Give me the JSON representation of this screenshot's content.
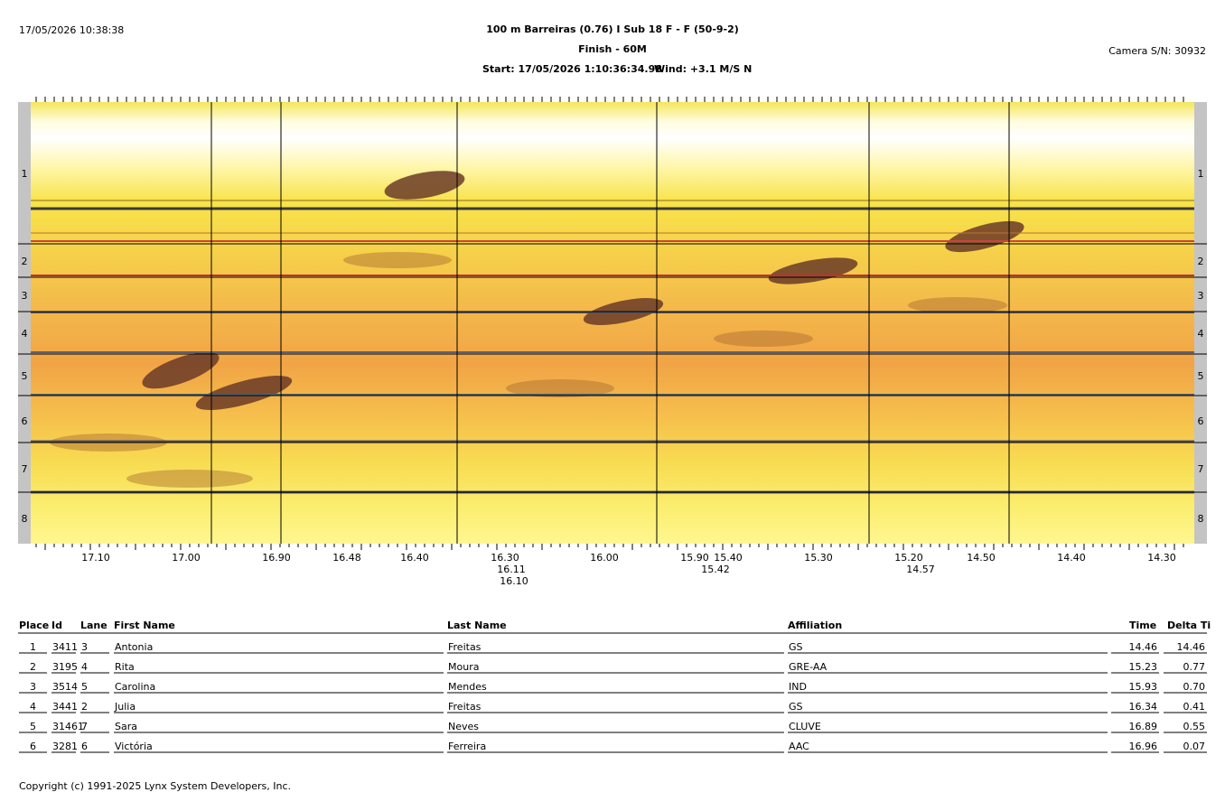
{
  "header": {
    "timestamp": "17/05/2026 10:38:38",
    "title": "100 m Barreiras (0.76) I Sub 18 F - F (50-9-2)",
    "subtitle": "Finish - 60M",
    "start": "Start: 17/05/2026 1:10:36:34.98",
    "wind": "Wind: +3.1 M/S N",
    "camera": "Camera S/N: 30932"
  },
  "image": {
    "lanes": [
      "1",
      "2",
      "3",
      "4",
      "5",
      "6",
      "7",
      "8"
    ],
    "time_labels": [
      "17.10",
      "17.00",
      "16.90",
      "16.48",
      "16.40",
      "16.30",
      "16.11",
      "16.10",
      "16.00",
      "15.90",
      "15.40",
      "15.42",
      "15.30",
      "15.20",
      "14.57",
      "14.50",
      "14.40",
      "14.30"
    ]
  },
  "table": {
    "columns": [
      "Place",
      "Id",
      "Lane",
      "First Name",
      "Last Name",
      "Affiliation",
      "Time",
      "Delta Ti"
    ],
    "rows": [
      [
        "1",
        "3411",
        "3",
        "Antonia",
        "Freitas",
        "GS",
        "14.46",
        "14.46"
      ],
      [
        "2",
        "3195",
        "4",
        "Rita",
        "Moura",
        "GRE-AA",
        "15.23",
        "0.77"
      ],
      [
        "3",
        "3514",
        "5",
        "Carolina",
        "Mendes",
        "IND",
        "15.93",
        "0.70"
      ],
      [
        "4",
        "3441",
        "2",
        "Julia",
        "Freitas",
        "GS",
        "16.34",
        "0.41"
      ],
      [
        "5",
        "31461",
        "7",
        "Sara",
        "Neves",
        "CLUVE",
        "16.89",
        "0.55"
      ],
      [
        "6",
        "3281",
        "6",
        "Victória",
        "Ferreira",
        "AAC",
        "16.96",
        "0.07"
      ]
    ]
  },
  "footer": "Copyright (c) 1991-2025 Lynx System Developers, Inc."
}
